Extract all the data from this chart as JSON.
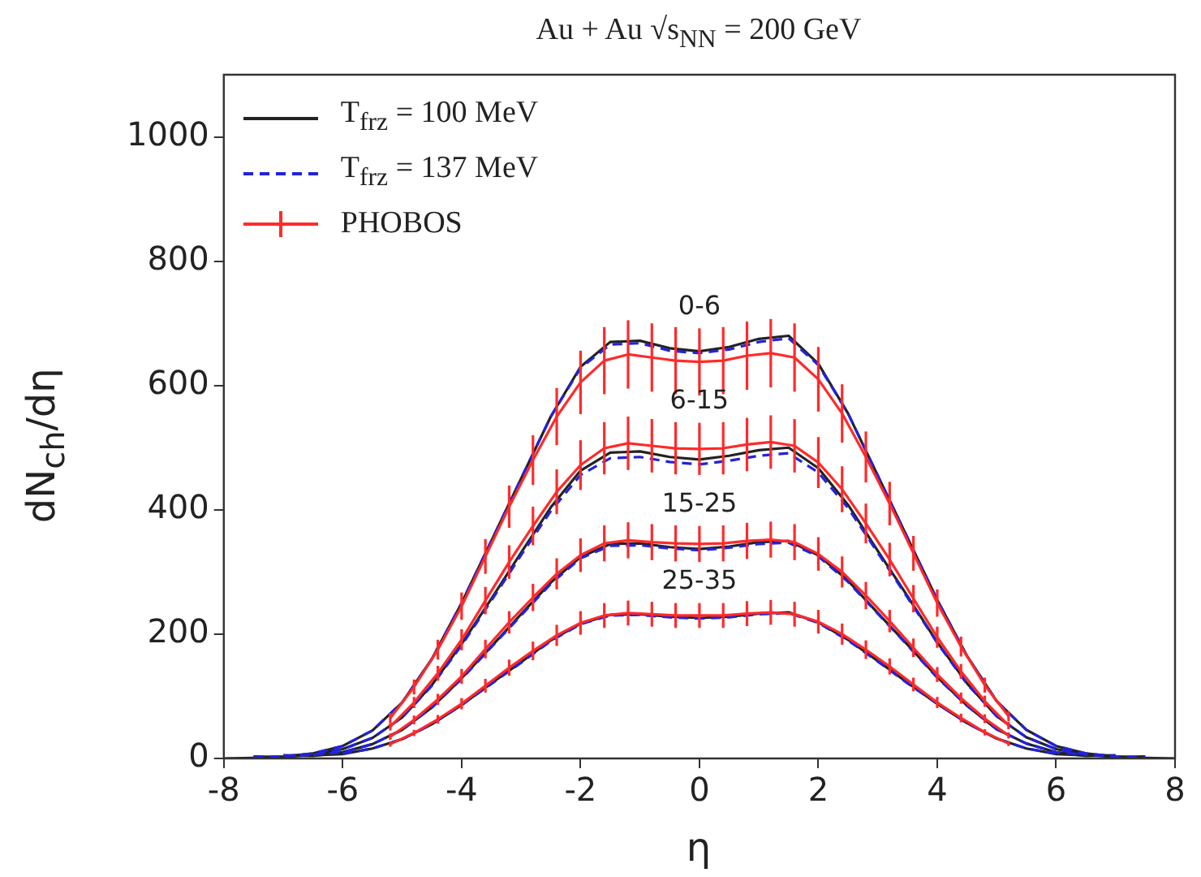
{
  "chart_data": {
    "type": "line",
    "title": "Au + Au √s$_{NN}$ = 200 GeV",
    "xlabel": "η",
    "ylabel": "dN$_{ch}$/dη",
    "xlim": [
      -8,
      8
    ],
    "xticks": [
      -8,
      -6,
      -4,
      -2,
      0,
      2,
      4,
      6,
      8
    ],
    "ylim": [
      0,
      1100
    ],
    "yticks": [
      0,
      200,
      400,
      600,
      800,
      1000
    ],
    "grid": false,
    "legend": "top left",
    "marker": "none",
    "annotations": [
      "0-6",
      "6-15",
      "15-25",
      "25-35"
    ],
    "series": [
      {
        "name": "T$_{frz}$ = 100 MeV",
        "color": "#222222",
        "line_style": "solid",
        "x": [
          -8,
          -7.5,
          -7,
          -6.5,
          -6,
          -5.5,
          -5,
          -4.5,
          -4,
          -3.5,
          -3,
          -2.5,
          -2,
          -1.5,
          -1,
          -0.5,
          0,
          0.5,
          1,
          1.5,
          2,
          2.5,
          3,
          3.5,
          4,
          4.5,
          5,
          5.5,
          6,
          6.5,
          7,
          7.5,
          8
        ],
        "values": [
          0,
          1,
          3,
          8,
          20,
          45,
          90,
          160,
          250,
          350,
          450,
          550,
          630,
          670,
          672,
          660,
          655,
          662,
          675,
          680,
          635,
          555,
          455,
          355,
          255,
          165,
          92,
          46,
          20,
          8,
          3,
          1,
          0
        ]
      },
      {
        "name": "T$_{frz}$ = 137 MeV",
        "color": "#2222dd",
        "line_style": "dashed",
        "x": [
          -7.5,
          -7,
          -6.5,
          -6,
          -5.5,
          -5,
          -4.5,
          -4,
          -3.5,
          -3,
          -2.5,
          -2,
          -1.5,
          -1,
          -0.5,
          0,
          0.5,
          1,
          1.5,
          2,
          2.5,
          3,
          3.5,
          4,
          4.5,
          5,
          5.5,
          6,
          6.5,
          7,
          7.5
        ],
        "values": [
          2,
          3,
          8,
          20,
          45,
          90,
          160,
          250,
          350,
          450,
          550,
          628,
          666,
          668,
          656,
          652,
          658,
          670,
          676,
          633,
          555,
          455,
          355,
          255,
          165,
          92,
          46,
          20,
          8,
          3,
          2
        ]
      },
      {
        "name": "PHOBOS",
        "color": "#ff2a2a",
        "line_style": "solid",
        "x": [
          -5.2,
          -4.8,
          -4.4,
          -4,
          -3.6,
          -3.2,
          -2.8,
          -2.4,
          -2,
          -1.6,
          -1.2,
          -0.8,
          -0.4,
          0,
          0.4,
          0.8,
          1.2,
          1.6,
          2,
          2.4,
          2.8,
          3.2,
          3.6,
          4,
          4.4,
          4.8,
          5.2
        ],
        "values": [
          65,
          115,
          175,
          245,
          325,
          405,
          480,
          550,
          605,
          640,
          650,
          645,
          640,
          638,
          640,
          648,
          652,
          645,
          610,
          555,
          485,
          410,
          330,
          250,
          180,
          118,
          68
        ],
        "errors": [
          8,
          12,
          16,
          22,
          28,
          34,
          40,
          46,
          51,
          54,
          55,
          55,
          54,
          54,
          54,
          55,
          55,
          55,
          52,
          47,
          41,
          35,
          28,
          22,
          16,
          12,
          8
        ]
      },
      {
        "color": "#222222",
        "line_style": "solid",
        "x": [
          -7.5,
          -7,
          -6.5,
          -6,
          -5.5,
          -5,
          -4.5,
          -4,
          -3.5,
          -3,
          -2.5,
          -2,
          -1.5,
          -1,
          -0.5,
          0,
          0.5,
          1,
          1.5,
          2,
          2.5,
          3,
          3.5,
          4,
          4.5,
          5,
          5.5,
          6,
          6.5,
          7,
          7.5
        ],
        "values": [
          3,
          2,
          6,
          15,
          33,
          66,
          118,
          184,
          257,
          331,
          404,
          463,
          492,
          494,
          485,
          481,
          487,
          496,
          500,
          467,
          408,
          334,
          261,
          187,
          121,
          68,
          34,
          15,
          6,
          2,
          3
        ]
      },
      {
        "color": "#2222dd",
        "line_style": "dashed",
        "x": [
          -7,
          -6.5,
          -6,
          -5.5,
          -5,
          -4.5,
          -4,
          -3.5,
          -3,
          -2.5,
          -2,
          -1.5,
          -1,
          -0.5,
          0,
          0.5,
          1,
          1.5,
          2,
          2.5,
          3,
          3.5,
          4,
          4.5,
          5,
          5.5,
          6,
          6.5,
          7
        ],
        "values": [
          4,
          6,
          15,
          33,
          66,
          117,
          182,
          254,
          327,
          398,
          456,
          483,
          485,
          477,
          473,
          479,
          487,
          491,
          460,
          403,
          331,
          259,
          186,
          120,
          68,
          34,
          15,
          6,
          4
        ]
      },
      {
        "color": "#ff2a2a",
        "line_style": "solid",
        "x": [
          -5.2,
          -4.8,
          -4.4,
          -4,
          -3.6,
          -3.2,
          -2.8,
          -2.4,
          -2,
          -1.6,
          -1.2,
          -0.8,
          -0.4,
          0,
          0.4,
          0.8,
          1.2,
          1.6,
          2,
          2.4,
          2.8,
          3.2,
          3.6,
          4,
          4.4,
          4.8,
          5.2
        ],
        "values": [
          51,
          90,
          137,
          191,
          254,
          316,
          374,
          429,
          472,
          499,
          507,
          503,
          499,
          498,
          499,
          505,
          509,
          503,
          476,
          433,
          378,
          320,
          257,
          195,
          140,
          92,
          53
        ],
        "errors": [
          6,
          9,
          12,
          17,
          22,
          27,
          31,
          36,
          40,
          42,
          43,
          43,
          42,
          42,
          42,
          43,
          43,
          43,
          41,
          37,
          32,
          27,
          22,
          17,
          12,
          9,
          6
        ]
      },
      {
        "color": "#222222",
        "line_style": "solid",
        "x": [
          -7,
          -6.5,
          -6,
          -5.5,
          -5,
          -4.5,
          -4,
          -3.5,
          -3,
          -2.5,
          -2,
          -1.5,
          -1,
          -0.5,
          0,
          0.5,
          1,
          1.5,
          2,
          2.5,
          3,
          3.5,
          4,
          4.5,
          5,
          5.5,
          6,
          6.5,
          7
        ],
        "values": [
          5,
          4,
          10,
          23,
          46,
          82,
          129,
          180,
          232,
          283,
          324,
          345,
          346,
          340,
          337,
          341,
          348,
          350,
          327,
          286,
          234,
          183,
          131,
          85,
          47,
          24,
          10,
          4,
          5
        ]
      },
      {
        "color": "#2222dd",
        "line_style": "dashed",
        "x": [
          -6.5,
          -6,
          -5.5,
          -5,
          -4.5,
          -4,
          -3.5,
          -3,
          -2.5,
          -2,
          -1.5,
          -1,
          -0.5,
          0,
          0.5,
          1,
          1.5,
          2,
          2.5,
          3,
          3.5,
          4,
          4.5,
          5,
          5.5,
          6,
          6.5
        ],
        "values": [
          6,
          10,
          23,
          46,
          82,
          128,
          179,
          230,
          281,
          322,
          342,
          343,
          338,
          335,
          339,
          345,
          347,
          325,
          284,
          233,
          182,
          130,
          85,
          47,
          24,
          10,
          6
        ]
      },
      {
        "color": "#ff2a2a",
        "line_style": "solid",
        "x": [
          -5.2,
          -4.8,
          -4.4,
          -4,
          -3.6,
          -3.2,
          -2.8,
          -2.4,
          -2,
          -1.6,
          -1.2,
          -0.8,
          -0.4,
          0,
          0.4,
          0.8,
          1.2,
          1.6,
          2,
          2.4,
          2.8,
          3.2,
          3.6,
          4,
          4.4,
          4.8,
          5.2
        ],
        "values": [
          35,
          62,
          95,
          132,
          176,
          219,
          259,
          297,
          327,
          346,
          351,
          348,
          346,
          345,
          346,
          350,
          352,
          348,
          329,
          300,
          262,
          221,
          178,
          135,
          97,
          64,
          37
        ],
        "errors": [
          5,
          7,
          9,
          12,
          15,
          18,
          22,
          25,
          27,
          29,
          29,
          29,
          29,
          29,
          29,
          29,
          29,
          29,
          27,
          25,
          22,
          18,
          15,
          12,
          9,
          7,
          5
        ]
      },
      {
        "color": "#222222",
        "line_style": "solid",
        "x": [
          -6.5,
          -6,
          -5.5,
          -5,
          -4.5,
          -4,
          -3.5,
          -3,
          -2.5,
          -2,
          -1.5,
          -1,
          -0.5,
          0,
          0.5,
          1,
          1.5,
          2,
          2.5,
          3,
          3.5,
          4,
          4.5,
          5,
          5.5,
          6,
          6.5
        ],
        "values": [
          5,
          7,
          16,
          31,
          55,
          86,
          121,
          155,
          190,
          217,
          231,
          232,
          228,
          226,
          228,
          233,
          235,
          219,
          191,
          157,
          122,
          88,
          57,
          32,
          16,
          7,
          5
        ]
      },
      {
        "color": "#2222dd",
        "line_style": "dashed",
        "x": [
          -6,
          -5.5,
          -5,
          -4.5,
          -4,
          -3.5,
          -3,
          -2.5,
          -2,
          -1.5,
          -1,
          -0.5,
          0,
          0.5,
          1,
          1.5,
          2,
          2.5,
          3,
          3.5,
          4,
          4.5,
          5,
          5.5,
          6
        ],
        "values": [
          8,
          16,
          31,
          55,
          86,
          120,
          154,
          189,
          216,
          230,
          231,
          227,
          225,
          227,
          232,
          234,
          218,
          190,
          156,
          121,
          88,
          57,
          32,
          16,
          8
        ]
      },
      {
        "color": "#ff2a2a",
        "line_style": "solid",
        "x": [
          -5.2,
          -4.8,
          -4.4,
          -4,
          -3.6,
          -3.2,
          -2.8,
          -2.4,
          -2,
          -1.6,
          -1.2,
          -0.8,
          -0.4,
          0,
          0.4,
          0.8,
          1.2,
          1.6,
          2,
          2.4,
          2.8,
          3.2,
          3.6,
          4,
          4.4,
          4.8,
          5.2
        ],
        "values": [
          23,
          41,
          63,
          88,
          117,
          146,
          173,
          198,
          218,
          230,
          234,
          232,
          230,
          230,
          230,
          233,
          235,
          232,
          220,
          200,
          175,
          148,
          119,
          90,
          65,
          42,
          24
        ],
        "errors": [
          4,
          5,
          7,
          9,
          11,
          13,
          15,
          17,
          19,
          20,
          20,
          20,
          20,
          20,
          20,
          20,
          20,
          20,
          19,
          17,
          15,
          13,
          11,
          9,
          7,
          5,
          4
        ]
      }
    ]
  }
}
